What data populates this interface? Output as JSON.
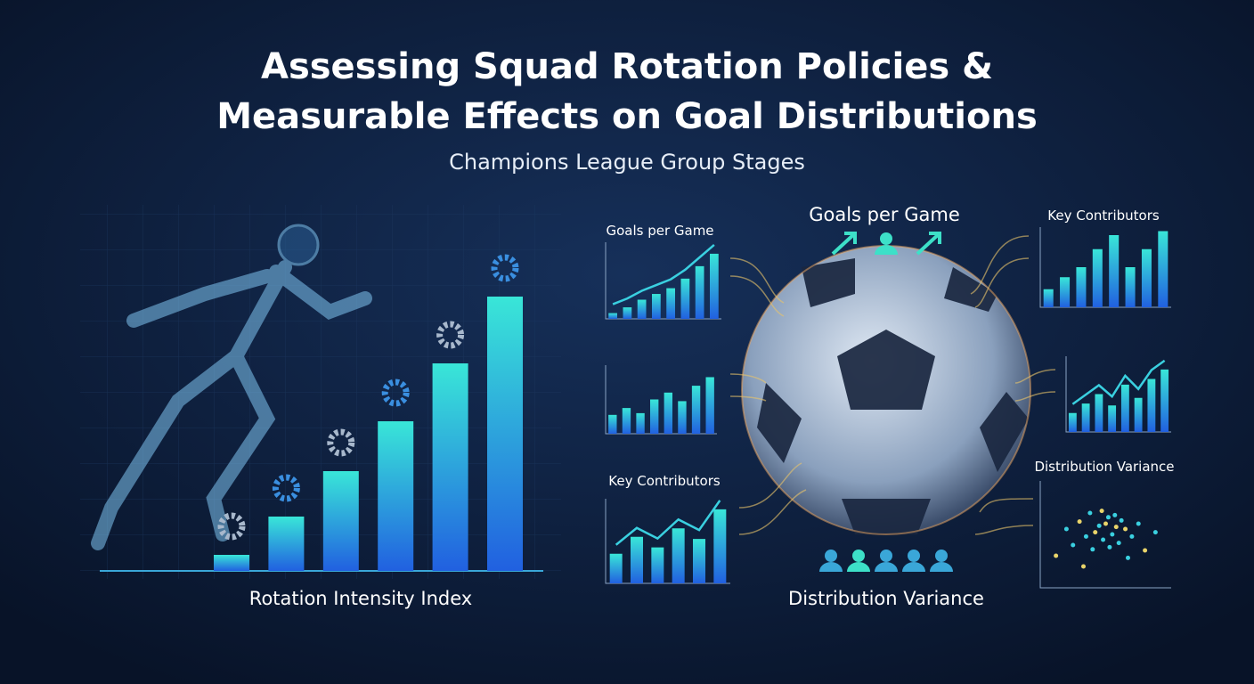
{
  "header": {
    "title_line1": "Assessing Squad Rotation Policies &",
    "title_line2": "Measurable Effects on Goal Distributions",
    "subtitle": "Champions League Group Stages"
  },
  "rotation_chart": {
    "type": "bar",
    "label": "Rotation Intensity Index",
    "values": [
      18,
      61,
      112,
      168,
      233,
      308
    ],
    "ylim": [
      0,
      320
    ]
  },
  "center_labels": {
    "top": "Goals per Game",
    "bottom": "Distribution Variance"
  },
  "panels": [
    {
      "type": "bar",
      "title": "Goals per Game",
      "values": [
        6,
        12,
        20,
        26,
        32,
        42,
        55,
        68
      ],
      "line": true,
      "ylim": [
        0,
        80
      ]
    },
    {
      "type": "bar",
      "values": [
        22,
        30,
        24,
        40,
        48,
        38,
        56,
        66
      ],
      "ylim": [
        0,
        80
      ]
    },
    {
      "type": "bar",
      "title": "Key Contributors",
      "values": [
        28,
        44,
        34,
        52,
        42,
        70
      ],
      "line": true,
      "ylim": [
        0,
        80
      ]
    },
    {
      "type": "bar",
      "title": "Key Contributors",
      "values": [
        18,
        30,
        40,
        58,
        72,
        40,
        58,
        76
      ],
      "ylim": [
        0,
        80
      ]
    },
    {
      "type": "bar",
      "values": [
        20,
        30,
        40,
        28,
        50,
        36,
        56,
        66
      ],
      "line": true,
      "ylim": [
        0,
        80
      ]
    },
    {
      "type": "scatter",
      "title": "Distribution Variance",
      "x": [
        12,
        20,
        25,
        30,
        35,
        38,
        42,
        45,
        48,
        50,
        52,
        55,
        58,
        60,
        62,
        65,
        70,
        75,
        80,
        88,
        40,
        47,
        53,
        57,
        33,
        67
      ],
      "y": [
        30,
        55,
        40,
        62,
        48,
        70,
        52,
        58,
        45,
        60,
        66,
        50,
        57,
        42,
        63,
        55,
        48,
        60,
        35,
        52,
        36,
        72,
        38,
        68,
        20,
        28
      ],
      "xlim": [
        0,
        100
      ],
      "ylim": [
        0,
        100
      ]
    }
  ]
}
